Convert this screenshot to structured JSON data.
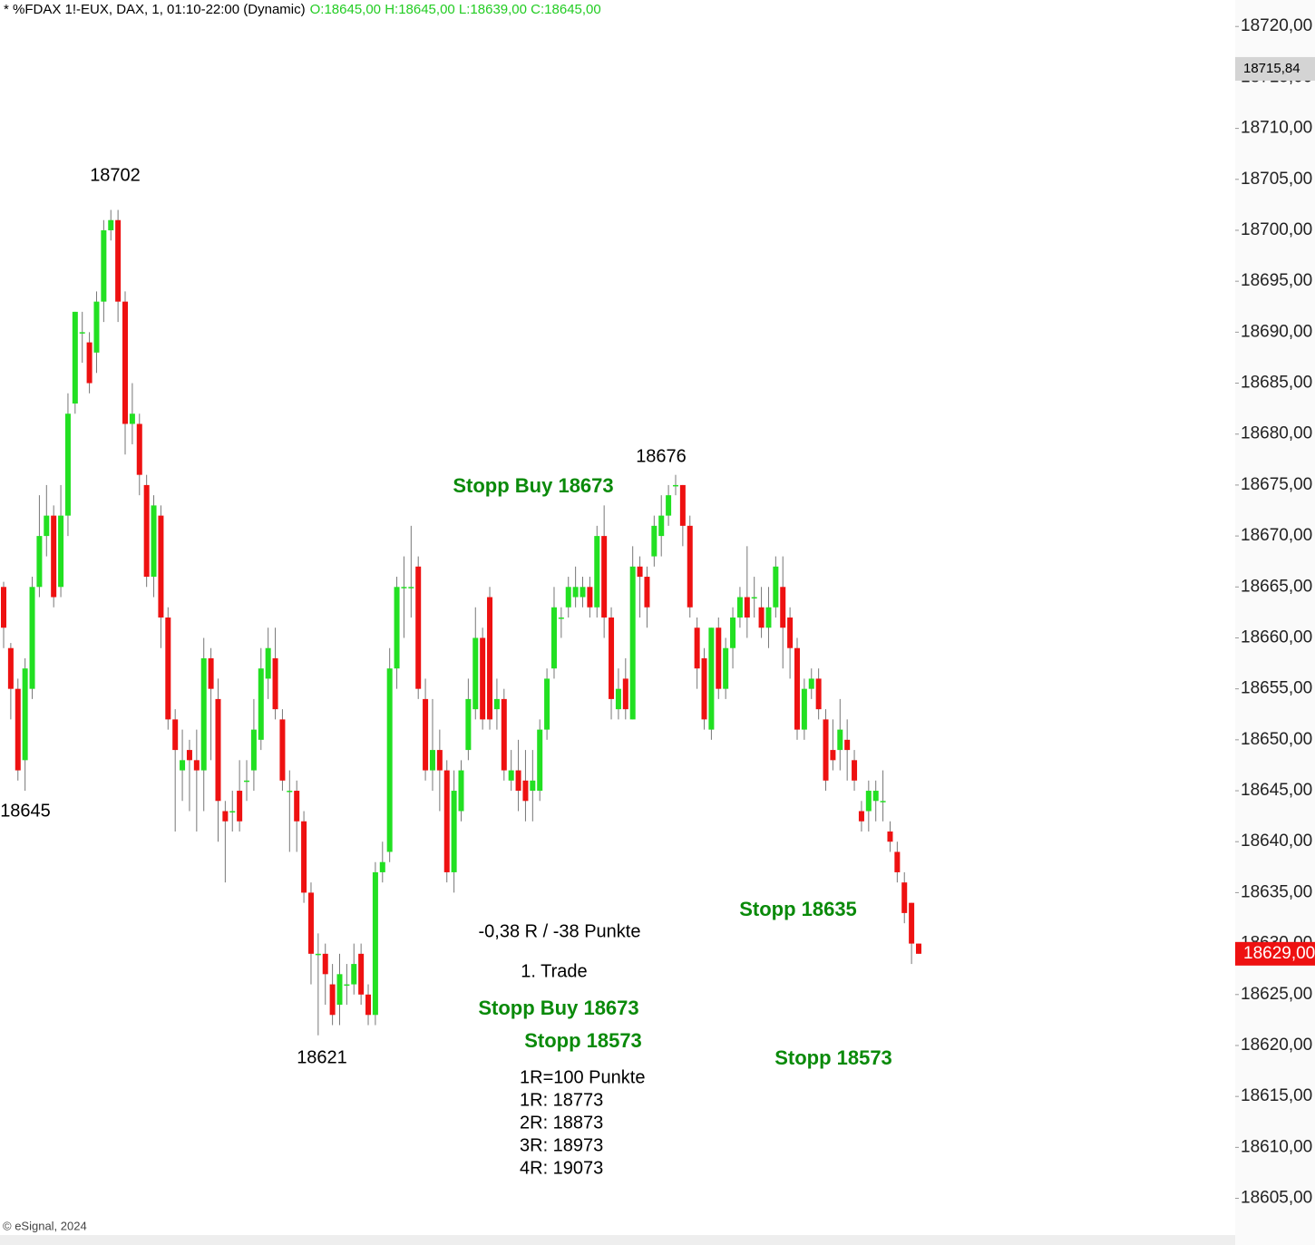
{
  "chart_data": {
    "type": "candlestick",
    "title": "* %FDAX 1!-EUX, DAX, 1, 01:10-22:00 (Dynamic)",
    "ohlc_label": "O:18645,00 H:18645,00 L:18639,00 C:18645,00",
    "copyright": "© eSignal, 2024",
    "up_color": "#22e022",
    "down_color": "#ee1111",
    "open": [
      18665,
      18659,
      18655,
      18648,
      18655,
      18665,
      18670,
      18672,
      18665,
      18672,
      18683,
      18690,
      18689,
      18688,
      18693,
      18700,
      18701,
      18693,
      18681,
      18681,
      18675,
      18666,
      18672,
      18662,
      18652,
      18647,
      18649,
      18648,
      18647,
      18658,
      18654,
      18643,
      18643,
      18645,
      18646,
      18647,
      18650,
      18656,
      18658,
      18652,
      18645,
      18645,
      18642,
      18635,
      18629,
      18629,
      18626,
      18624,
      18626,
      18626,
      18629,
      18625,
      18623,
      18637,
      18639,
      18657,
      18665,
      18665,
      18667,
      18654,
      18647,
      18649,
      18647,
      18637,
      18643,
      18649,
      18653,
      18660,
      18664,
      18653,
      18654,
      18646,
      18647,
      18646,
      18645,
      18645,
      18651,
      18657,
      18662,
      18663,
      18664,
      18664,
      18665,
      18663,
      18670,
      18662,
      18653,
      18656,
      18652,
      18667,
      18666,
      18668,
      18670,
      18672,
      18675,
      18675,
      18671,
      18661,
      18658,
      18651,
      18661,
      18655,
      18659,
      18662,
      18664,
      18664,
      18663,
      18661,
      18663,
      18665,
      18662,
      18659,
      18651,
      18655,
      18656,
      18652,
      18649,
      18649,
      18650,
      18648,
      18643,
      18643,
      18644,
      18644,
      18641,
      18639,
      18636,
      18634,
      18630
    ],
    "high": [
      18665.5,
      18659.5,
      18656,
      18658,
      18666,
      18674,
      18675,
      18673,
      18675,
      18684,
      18692,
      18692,
      18690,
      18694,
      18701,
      18702,
      18702,
      18694,
      18685,
      18682,
      18676,
      18674,
      18673,
      18663,
      18653,
      18651,
      18650,
      18651,
      18660,
      18659,
      18656,
      18644,
      18645,
      18648,
      18648,
      18654,
      18659,
      18661,
      18661,
      18653,
      18647,
      18646,
      18643,
      18636,
      18631,
      18630,
      18628,
      18629,
      18628,
      18630,
      18630,
      18626,
      18638,
      18640,
      18659,
      18666,
      18668,
      18671,
      18668,
      18656,
      18654,
      18651,
      18648,
      18647,
      18648,
      18656,
      18663,
      18661,
      18665,
      18656,
      18655,
      18649,
      18650,
      18649,
      18649,
      18652,
      18657,
      18665,
      18663,
      18666,
      18667,
      18666,
      18666,
      18671,
      18673,
      18663,
      18657,
      18658,
      18669,
      18668,
      18667,
      18672,
      18674,
      18675,
      18676,
      18675,
      18672,
      18662,
      18659,
      18661,
      18662,
      18660,
      18663,
      18665,
      18669,
      18666,
      18665,
      18665,
      18668,
      18668,
      18663,
      18660,
      18656,
      18657,
      18657,
      18653,
      18652,
      18654,
      18652,
      18649,
      18644,
      18646,
      18646,
      18647,
      18642,
      18640,
      18637,
      18634,
      18630
    ],
    "low": [
      18659,
      18652,
      18646,
      18645,
      18654,
      18664,
      18668,
      18663,
      18664,
      18670,
      18682,
      18687,
      18684,
      18686,
      18691,
      18699,
      18691,
      18678,
      18679,
      18674,
      18665,
      18664,
      18659,
      18651,
      18641,
      18644,
      18643,
      18641,
      18643,
      18648,
      18640,
      18636,
      18641,
      18641,
      18644,
      18645,
      18649,
      18654,
      18652,
      18645,
      18639,
      18639,
      18634,
      18626,
      18621,
      18624,
      18622,
      18622,
      18624,
      18625,
      18624,
      18622,
      18622,
      18636,
      18638,
      18655,
      18660,
      18662,
      18654,
      18646,
      18645,
      18643,
      18636,
      18635,
      18642,
      18648,
      18652,
      18651,
      18651,
      18651,
      18646,
      18645,
      18643,
      18642,
      18642,
      18644,
      18650,
      18656,
      18660,
      18662,
      18663,
      18663,
      18662,
      18662,
      18660,
      18652,
      18652,
      18652,
      18652,
      18662,
      18661,
      18667,
      18668,
      18671,
      18674,
      18669,
      18662,
      18655,
      18651,
      18650,
      18654,
      18654,
      18657,
      18661,
      18660,
      18662,
      18660,
      18659,
      18662,
      18657,
      18656,
      18650,
      18650,
      18654,
      18652,
      18645,
      18647,
      18647,
      18646,
      18645,
      18641,
      18641,
      18642,
      18642,
      18639,
      18636,
      18632,
      18628,
      18629
    ],
    "close": [
      18661,
      18655,
      18647,
      18657,
      18665,
      18670,
      18672,
      18664,
      18672,
      18682,
      18692,
      18690,
      18685,
      18693,
      18700,
      18701,
      18693,
      18681,
      18682,
      18676,
      18666,
      18673,
      18662,
      18652,
      18649,
      18648,
      18648,
      18647,
      18658,
      18655,
      18644,
      18642,
      18643,
      18642,
      18646,
      18651,
      18657,
      18659,
      18653,
      18646,
      18645,
      18642,
      18635,
      18629,
      18629,
      18627,
      18623,
      18627,
      18626,
      18628,
      18625,
      18623,
      18637,
      18638,
      18657,
      18665,
      18665,
      18665,
      18655,
      18647,
      18649,
      18647,
      18637,
      18645,
      18647,
      18654,
      18660,
      18652,
      18652,
      18654,
      18647,
      18647,
      18645,
      18644,
      18646,
      18651,
      18656,
      18663,
      18662,
      18665,
      18665,
      18665,
      18663,
      18670,
      18662,
      18654,
      18655,
      18653,
      18667,
      18666,
      18663,
      18671,
      18672,
      18674,
      18675,
      18671,
      18663,
      18657,
      18652,
      18661,
      18655,
      18659,
      18662,
      18664,
      18662,
      18664,
      18661,
      18663,
      18667,
      18661,
      18659,
      18651,
      18655,
      18656,
      18653,
      18646,
      18648,
      18651,
      18649,
      18646,
      18642,
      18645,
      18645,
      18644,
      18640,
      18637,
      18633,
      18630,
      18629
    ],
    "ylim": [
      18601.4,
      18722.6
    ],
    "yticks": [
      {
        "value": 18720,
        "label": "18720,00"
      },
      {
        "value": 18715,
        "label": "18715,00"
      },
      {
        "value": 18710,
        "label": "18710,00"
      },
      {
        "value": 18705,
        "label": "18705,00"
      },
      {
        "value": 18700,
        "label": "18700,00"
      },
      {
        "value": 18695,
        "label": "18695,00"
      },
      {
        "value": 18690,
        "label": "18690,00"
      },
      {
        "value": 18685,
        "label": "18685,00"
      },
      {
        "value": 18680,
        "label": "18680,00"
      },
      {
        "value": 18675,
        "label": "18675,00"
      },
      {
        "value": 18670,
        "label": "18670,00"
      },
      {
        "value": 18665,
        "label": "18665,00"
      },
      {
        "value": 18660,
        "label": "18660,00"
      },
      {
        "value": 18655,
        "label": "18655,00"
      },
      {
        "value": 18650,
        "label": "18650,00"
      },
      {
        "value": 18645,
        "label": "18645,00"
      },
      {
        "value": 18640,
        "label": "18640,00"
      },
      {
        "value": 18635,
        "label": "18635,00"
      },
      {
        "value": 18630,
        "label": "18630,00"
      },
      {
        "value": 18625,
        "label": "18625,00"
      },
      {
        "value": 18620,
        "label": "18620,00"
      },
      {
        "value": 18615,
        "label": "18615,00"
      },
      {
        "value": 18610,
        "label": "18610,00"
      },
      {
        "value": 18605,
        "label": "18605,00"
      }
    ],
    "price_tags": [
      {
        "value": 18715.84,
        "label": "18715,84",
        "color": "#d4d4d4"
      },
      {
        "value": 18629,
        "label": "18629,00",
        "color": "#ee1111"
      }
    ],
    "annotations": [
      "18702",
      "18645",
      "18676",
      "Stopp Buy 18673",
      "18621",
      "-0,38 R / -38 Punkte",
      "1. Trade",
      "Stopp Buy 18673",
      "Stopp 18573",
      "Stopp 18635",
      "Stopp 18573",
      "1R=100 Punkte",
      "1R: 18773",
      "2R: 18873",
      "3R: 18973",
      "4R: 19073"
    ]
  }
}
